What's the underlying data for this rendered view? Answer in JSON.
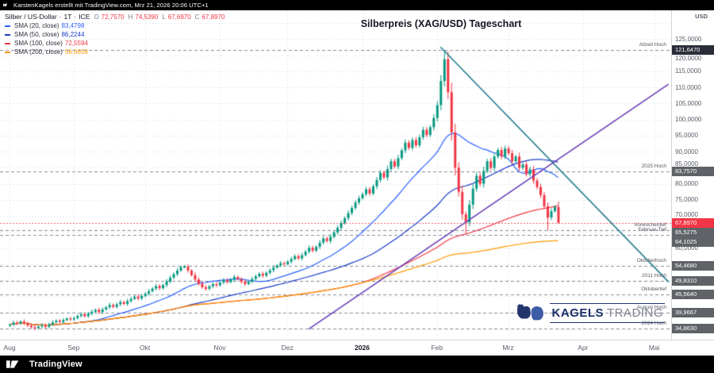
{
  "meta": {
    "top_bar": "KarstenKagels erstellt mit TradingView.com, Mrz 21, 2026 20:06 UTC+1"
  },
  "legend": {
    "symbol": "Silber / US-Dollar",
    "separator": "·",
    "interval": "1T",
    "exchange": "ICE",
    "ohlc_color": "#F23645",
    "ohlc": [
      {
        "k": "O",
        "v": "72,7570"
      },
      {
        "k": "H",
        "v": "74,5390"
      },
      {
        "k": "L",
        "v": "67,6970"
      },
      {
        "k": "C",
        "v": "67,8970"
      }
    ],
    "smas": [
      {
        "label": "SMA (20, close)",
        "value": "83,4798",
        "color": "#2962FF"
      },
      {
        "label": "SMA (50, close)",
        "value": "86,2244",
        "color": "#1a3bc7"
      },
      {
        "label": "SMA (100, close)",
        "value": "72,5594",
        "color": "#F23645"
      },
      {
        "label": "SMA (200, close)",
        "value": "56,6659",
        "color": "#FF9800"
      }
    ]
  },
  "axis": {
    "currency": "USD",
    "plain_labels": [
      {
        "price": 125,
        "text": "125,0000"
      },
      {
        "price": 120,
        "text": "120,0000"
      },
      {
        "price": 115,
        "text": "115,0000"
      },
      {
        "price": 110,
        "text": "110,0000"
      },
      {
        "price": 105,
        "text": "105,0000"
      },
      {
        "price": 100,
        "text": "100,0000"
      },
      {
        "price": 95,
        "text": "95,0000"
      },
      {
        "price": 90,
        "text": "90,0000"
      },
      {
        "price": 85,
        "text": "85,0000"
      },
      {
        "price": 80,
        "text": "80,0000"
      },
      {
        "price": 75,
        "text": "75,0000"
      },
      {
        "price": 70,
        "text": "70,0000"
      },
      {
        "price": 60,
        "text": "60,0000"
      }
    ]
  },
  "chart_data": {
    "type": "candlestick",
    "title": "Silberpreis (XAG/USD) Tageschart",
    "up_color": "#089981",
    "down_color": "#F23645",
    "grid_step": 5,
    "view_price_top": 134,
    "view_price_bottom": 31.5,
    "closes": [
      36.2,
      36.8,
      36.5,
      37.1,
      36.6,
      35.9,
      35.4,
      35.1,
      35.6,
      36.0,
      35.5,
      36.3,
      36.9,
      37.4,
      37.0,
      37.6,
      38.1,
      37.8,
      38.2,
      38.9,
      39.4,
      38.8,
      39.6,
      40.2,
      40.8,
      40.1,
      40.9,
      41.6,
      42.3,
      41.7,
      42.5,
      43.2,
      42.6,
      43.5,
      44.2,
      44.9,
      44.3,
      45.1,
      45.8,
      46.6,
      47.4,
      48.2,
      47.5,
      48.5,
      49.6,
      50.8,
      51.9,
      53.0,
      54.1,
      54.2,
      53.0,
      51.6,
      50.2,
      48.9,
      47.8,
      47.3,
      48.1,
      48.8,
      48.4,
      49.3,
      50.0,
      49.4,
      50.2,
      51.0,
      50.3,
      49.5,
      48.8,
      49.6,
      50.4,
      51.2,
      52.0,
      51.4,
      52.3,
      53.1,
      53.9,
      54.6,
      55.3,
      55.0,
      55.8,
      56.6,
      57.5,
      56.8,
      57.8,
      58.9,
      60.1,
      59.2,
      60.4,
      61.7,
      63.0,
      62.2,
      63.5,
      64.9,
      66.3,
      67.8,
      69.3,
      70.9,
      72.5,
      74.2,
      75.5,
      76.8,
      78.3,
      77.0,
      79.2,
      81.2,
      83.4,
      82.0,
      84.6,
      87.0,
      85.4,
      88.0,
      90.4,
      92.8,
      91.2,
      93.6,
      92.0,
      94.5,
      96.8,
      95.2,
      97.6,
      100.5,
      104.5,
      112.0,
      118.8,
      108.5,
      96.0,
      85.0,
      77.5,
      70.5,
      68.0,
      73.5,
      78.5,
      82.5,
      80.0,
      84.0,
      87.0,
      85.0,
      88.5,
      90.5,
      88.5,
      91.0,
      89.5,
      87.0,
      88.5,
      85.0,
      86.0,
      83.0,
      84.5,
      81.0,
      79.0,
      76.5,
      73.0,
      69.5,
      71.5,
      72.8,
      67.897
    ],
    "overrides": {
      "48": {
        "h": 54.468
      },
      "122": {
        "h": 121.647
      },
      "128": {
        "l": 64.1025
      },
      "151": {
        "l": 65.5275
      },
      "154": {
        "o": 72.757,
        "h": 74.539,
        "l": 67.697,
        "c": 67.897
      }
    },
    "months": [
      {
        "label": "Aug",
        "i": 0
      },
      {
        "label": "Sep",
        "i": 18
      },
      {
        "label": "Okt",
        "i": 38
      },
      {
        "label": "Nov",
        "i": 59
      },
      {
        "label": "Dez",
        "i": 78
      },
      {
        "label": "2026",
        "i": 99,
        "year": true
      },
      {
        "label": "Feb",
        "i": 120
      },
      {
        "label": "Mrz",
        "i": 140
      },
      {
        "label": "Apr",
        "i": 161
      },
      {
        "label": "Mai",
        "i": 181
      }
    ],
    "sma_lines": [
      {
        "period": 20,
        "color": "#2962FF"
      },
      {
        "period": 50,
        "color": "#1a3bc7"
      },
      {
        "period": 100,
        "color": "#F23645"
      },
      {
        "period": 200,
        "color": "#FF9800"
      }
    ],
    "trendlines": [
      {
        "name": "abwaertstrend",
        "color": "#1f7a8c",
        "i1": 121,
        "p1": 122.6,
        "i2": 185,
        "p2": 49.5
      },
      {
        "name": "aufwaertstrend",
        "color": "#673ab7",
        "i1": 84,
        "p1": 34.8,
        "i2": 185,
        "p2": 111.0
      }
    ],
    "levels": [
      {
        "price": 121.647,
        "text": "121,6470",
        "note": "Allzeit Hoch",
        "box": "#2a2e39"
      },
      {
        "price": 83.757,
        "text": "83,7570",
        "note": "2025 Hoch",
        "box": "#5f6368"
      },
      {
        "price": 65.5275,
        "text": "65,5275",
        "note": "Vorwochentief",
        "box": "#5f6368"
      },
      {
        "price": 64.1025,
        "text": "64,1025",
        "note": "Februar-Tief",
        "box": "#5f6368"
      },
      {
        "price": 54.468,
        "text": "54,4680",
        "note": "Oktoberhoch",
        "box": "#5f6368"
      },
      {
        "price": 49.831,
        "text": "49,8310",
        "note": "2011 Hoch",
        "box": "#5f6368"
      },
      {
        "price": 45.564,
        "text": "45,5640",
        "note": "Oktobertief",
        "box": "#5f6368"
      },
      {
        "price": 39.9667,
        "text": "39,9667",
        "note": "August Hoch",
        "box": "#5f6368"
      },
      {
        "price": 34.863,
        "text": "34,8630",
        "note": "2024 Hoch",
        "box": "#5f6368"
      }
    ],
    "last_price": {
      "value": 67.897,
      "text": "67,8970",
      "color": "#F23645"
    }
  },
  "branding": {
    "kagels_name": "KAGELS",
    "kagels_suffix": "TRADING",
    "tradingview_label": "TradingView"
  }
}
